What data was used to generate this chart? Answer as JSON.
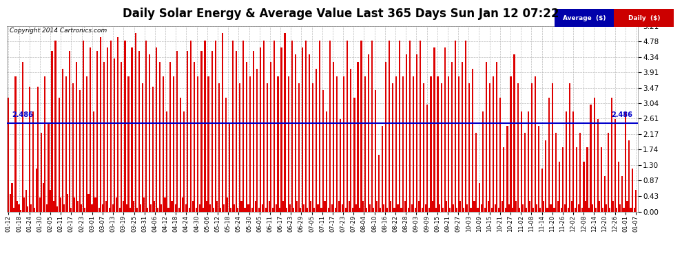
{
  "title": "Daily Solar Energy & Average Value Last 365 Days Sun Jan 12 07:22",
  "copyright": "Copyright 2014 Cartronics.com",
  "ymin": 0.0,
  "ymax": 5.21,
  "yticks": [
    0.0,
    0.43,
    0.87,
    1.3,
    1.74,
    2.17,
    2.61,
    3.04,
    3.47,
    3.91,
    4.34,
    4.78,
    5.21
  ],
  "average_value": 2.486,
  "average_label": "2.486",
  "bar_color": "#dd0000",
  "average_line_color": "#0000cc",
  "background_color": "#ffffff",
  "grid_color": "#bbbbbb",
  "title_fontsize": 12,
  "legend_avg_bg": "#0000aa",
  "legend_daily_bg": "#cc0000",
  "legend_avg_text": "Average  ($)",
  "legend_daily_text": "Daily  ($)",
  "x_tick_labels": [
    "01-12",
    "01-18",
    "01-24",
    "01-30",
    "02-05",
    "02-11",
    "02-17",
    "02-23",
    "03-01",
    "03-07",
    "03-13",
    "03-19",
    "03-25",
    "03-31",
    "04-06",
    "04-12",
    "04-18",
    "04-24",
    "04-30",
    "05-06",
    "05-12",
    "05-18",
    "05-24",
    "05-30",
    "06-05",
    "06-11",
    "06-17",
    "06-23",
    "06-29",
    "07-05",
    "07-11",
    "07-17",
    "07-23",
    "07-29",
    "08-04",
    "08-10",
    "08-16",
    "08-22",
    "08-28",
    "09-03",
    "09-09",
    "09-15",
    "09-21",
    "09-27",
    "10-03",
    "10-09",
    "10-15",
    "10-21",
    "10-27",
    "11-02",
    "11-08",
    "11-14",
    "11-20",
    "11-26",
    "12-02",
    "12-08",
    "12-14",
    "12-20",
    "12-26",
    "01-01",
    "01-07"
  ],
  "bar_values": [
    3.2,
    0.5,
    0.8,
    0.1,
    3.8,
    0.3,
    0.2,
    0.05,
    4.2,
    0.4,
    0.6,
    0.15,
    3.5,
    0.2,
    2.8,
    0.1,
    1.2,
    3.5,
    0.4,
    2.2,
    0.8,
    3.8,
    0.2,
    2.5,
    0.6,
    4.5,
    0.3,
    4.8,
    0.15,
    3.2,
    0.4,
    4.0,
    0.2,
    3.8,
    0.5,
    4.5,
    0.1,
    3.6,
    0.4,
    4.2,
    0.3,
    3.4,
    0.2,
    4.8,
    0.1,
    3.8,
    0.5,
    4.6,
    0.2,
    2.8,
    0.4,
    4.5,
    0.1,
    4.9,
    0.2,
    4.2,
    0.3,
    4.6,
    0.1,
    4.8,
    0.2,
    4.3,
    0.4,
    4.9,
    0.1,
    4.2,
    0.3,
    4.8,
    0.2,
    3.8,
    0.1,
    4.6,
    0.3,
    5.0,
    0.1,
    4.5,
    0.2,
    3.6,
    0.4,
    4.8,
    0.1,
    4.4,
    0.2,
    3.5,
    0.3,
    4.6,
    0.1,
    4.2,
    0.2,
    3.8,
    0.4,
    2.8,
    0.1,
    4.2,
    0.3,
    3.8,
    0.2,
    4.5,
    0.1,
    3.2,
    0.4,
    2.8,
    0.2,
    4.5,
    0.1,
    4.8,
    0.3,
    4.2,
    0.1,
    3.8,
    0.2,
    4.5,
    0.1,
    4.8,
    0.3,
    3.8,
    0.2,
    4.5,
    0.1,
    4.8,
    0.3,
    3.6,
    0.1,
    5.0,
    0.2,
    3.2,
    0.4,
    2.5,
    0.1,
    4.8,
    0.2,
    4.5,
    0.1,
    3.6,
    0.3,
    4.8,
    0.1,
    4.2,
    0.2,
    3.8,
    0.1,
    4.5,
    0.3,
    4.0,
    0.1,
    4.6,
    0.2,
    4.8,
    0.1,
    3.6,
    0.3,
    4.2,
    0.1,
    4.8,
    0.2,
    3.8,
    0.1,
    4.6,
    0.3,
    5.0,
    0.1,
    3.8,
    0.2,
    4.8,
    0.1,
    4.4,
    0.3,
    3.6,
    0.1,
    4.6,
    0.2,
    4.8,
    0.1,
    4.4,
    0.3,
    3.6,
    0.1,
    4.0,
    0.2,
    4.8,
    0.1,
    3.4,
    0.3,
    2.8,
    0.1,
    4.8,
    0.2,
    4.2,
    0.1,
    3.8,
    0.3,
    2.6,
    0.2,
    3.8,
    0.1,
    4.8,
    0.3,
    4.0,
    0.1,
    3.2,
    0.2,
    4.2,
    0.1,
    4.8,
    0.3,
    3.8,
    0.1,
    4.4,
    0.2,
    4.8,
    0.1,
    3.4,
    0.3,
    1.6,
    0.1,
    2.4,
    0.2,
    4.2,
    0.1,
    4.8,
    0.3,
    3.6,
    0.1,
    3.8,
    0.2,
    4.8,
    0.1,
    3.8,
    0.3,
    4.4,
    0.1,
    4.8,
    0.2,
    3.8,
    0.1,
    4.4,
    0.3,
    4.8,
    0.1,
    3.6,
    0.2,
    3.0,
    0.1,
    3.8,
    0.3,
    4.6,
    0.1,
    3.8,
    0.2,
    3.6,
    0.1,
    4.6,
    0.3,
    3.8,
    0.1,
    4.2,
    0.2,
    4.8,
    0.1,
    3.8,
    0.3,
    4.2,
    0.1,
    4.8,
    0.2,
    3.6,
    0.1,
    4.0,
    0.3,
    2.2,
    0.1,
    0.8,
    0.2,
    2.8,
    0.1,
    4.2,
    0.3,
    3.6,
    0.1,
    3.8,
    0.2,
    4.2,
    0.1,
    3.2,
    0.3,
    1.8,
    0.1,
    2.4,
    0.2,
    3.8,
    0.1,
    4.4,
    0.3,
    3.6,
    0.1,
    2.8,
    0.2,
    2.2,
    0.1,
    2.8,
    0.3,
    3.6,
    0.1,
    3.8,
    0.2,
    2.4,
    0.1,
    1.2,
    0.3,
    2.0,
    0.1,
    3.2,
    0.2,
    3.6,
    0.1,
    2.2,
    0.3,
    1.4,
    0.1,
    1.8,
    0.2,
    2.8,
    0.1,
    3.6,
    0.3,
    2.8,
    0.1,
    1.8,
    0.2,
    2.2,
    0.1,
    1.4,
    0.3,
    1.8,
    0.1,
    3.0,
    0.2,
    3.2,
    0.1,
    2.6,
    0.3,
    1.8,
    0.1,
    1.0,
    0.2,
    2.2,
    0.1,
    3.2,
    0.3,
    2.6,
    0.1,
    1.4,
    0.2,
    1.0,
    0.1,
    2.8,
    0.3,
    2.0,
    0.1,
    1.2,
    0.1,
    0.6
  ]
}
